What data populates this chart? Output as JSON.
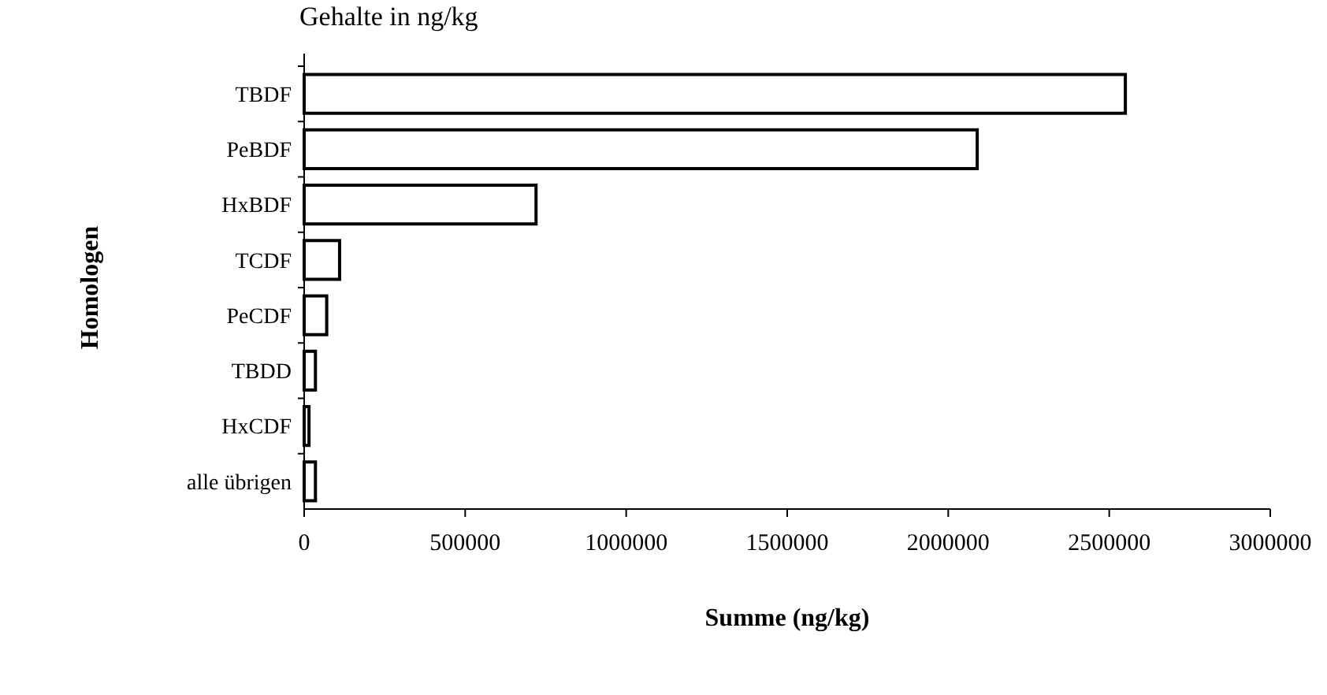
{
  "chart_data": {
    "type": "bar",
    "orientation": "horizontal",
    "title": "Gehalte in ng/kg",
    "xlabel": "Summe (ng/kg)",
    "ylabel": "Homologen",
    "categories": [
      "TBDF",
      "PeBDF",
      "HxBDF",
      "TCDF",
      "PeCDF",
      "TBDD",
      "HxCDF",
      "alle übrigen"
    ],
    "values": [
      2550000,
      2090000,
      720000,
      110000,
      70000,
      35000,
      15000,
      35000
    ],
    "color": "#ffffff",
    "xlim": [
      0,
      3000000
    ],
    "xticks": [
      0,
      500000,
      1000000,
      1500000,
      2000000,
      2500000,
      3000000
    ],
    "grid": false
  }
}
